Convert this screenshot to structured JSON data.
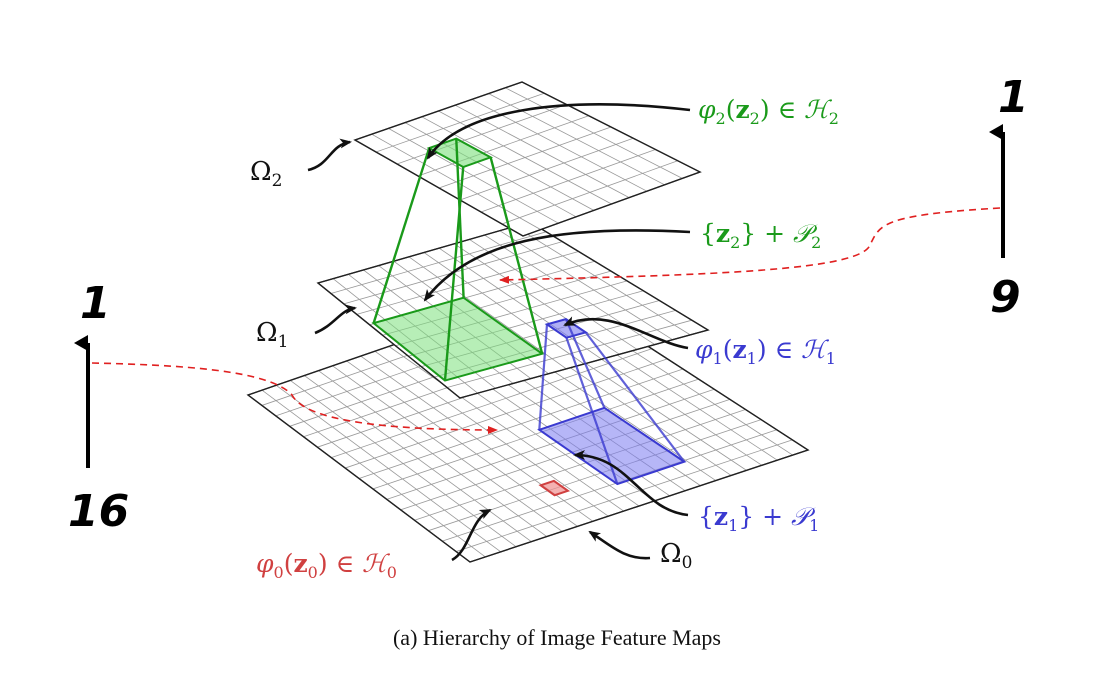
{
  "caption": "(a) Hierarchy of Image Feature Maps",
  "layers": {
    "omega2": {
      "base": "Ω",
      "sub": "2"
    },
    "omega1": {
      "base": "Ω",
      "sub": "1"
    },
    "omega0": {
      "base": "Ω",
      "sub": "0"
    }
  },
  "labels": {
    "phi2": {
      "lhs": "φ",
      "sub": "2",
      "arg_open": "(",
      "z": "z",
      "zsub": "2",
      "arg_close": ")",
      "rel": " ∈ ",
      "space": "ℋ",
      "space_sub": "2",
      "color": "#1a9a1a"
    },
    "patch2": {
      "open": "{",
      "z": "z",
      "zsub": "2",
      "close": "}",
      "plus": " + ",
      "P": "𝒫",
      "Psub": "2",
      "color": "#1a9a1a"
    },
    "phi1": {
      "lhs": "φ",
      "sub": "1",
      "arg_open": "(",
      "z": "z",
      "zsub": "1",
      "arg_close": ")",
      "rel": " ∈ ",
      "space": "ℋ",
      "space_sub": "1",
      "color": "#3a3ad0"
    },
    "patch1": {
      "open": "{",
      "z": "z",
      "zsub": "1",
      "close": "}",
      "plus": " + ",
      "P": "𝒫",
      "Psub": "1",
      "color": "#3a3ad0"
    },
    "phi0": {
      "lhs": "φ",
      "sub": "0",
      "arg_open": "(",
      "z": "z",
      "zsub": "0",
      "arg_close": ")",
      "rel": " ∈ ",
      "space": "ℋ",
      "space_sub": "0",
      "color": "#d04040"
    }
  },
  "annotations": {
    "right_top": "1",
    "right_bottom": "9",
    "left_top": "1",
    "left_bottom": "16"
  },
  "colors": {
    "green": "#1a9a1a",
    "green_fill": "#7be07b",
    "blue": "#3a3ad0",
    "blue_fill": "#7a7af0",
    "red": "#d04040",
    "red_dash": "#e02020",
    "grid": "#999999"
  }
}
